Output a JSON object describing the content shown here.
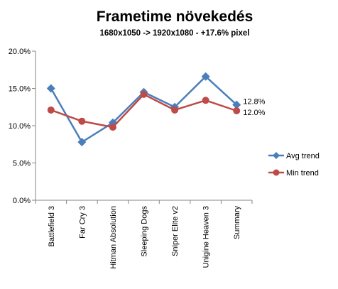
{
  "chart_data": {
    "type": "line",
    "title": "Frametime növekedés",
    "subtitle": "1680x1050  -> 1920x1080  - +17.6% pixel",
    "categories": [
      "Battlefield 3",
      "Far Cry 3",
      "Hitman Absolution",
      "Sleeping Dogs",
      "Sniper Elite v2",
      "Unigine Heaven 3",
      "Summary"
    ],
    "ylim": [
      0,
      0.2
    ],
    "yticks": [
      "0.0%",
      "5.0%",
      "10.0%",
      "15.0%",
      "20.0%"
    ],
    "grid": false,
    "legend": "right",
    "series": [
      {
        "name": "Avg trend",
        "color": "#4a7ebb",
        "marker": "diamond",
        "values": [
          0.15,
          0.078,
          0.104,
          0.145,
          0.125,
          0.166,
          0.128
        ],
        "end_label": "12.8%"
      },
      {
        "name": "Min trend",
        "color": "#be4b48",
        "marker": "circle",
        "values": [
          0.121,
          0.106,
          0.098,
          0.142,
          0.121,
          0.134,
          0.12
        ],
        "end_label": "12.0%"
      }
    ]
  }
}
